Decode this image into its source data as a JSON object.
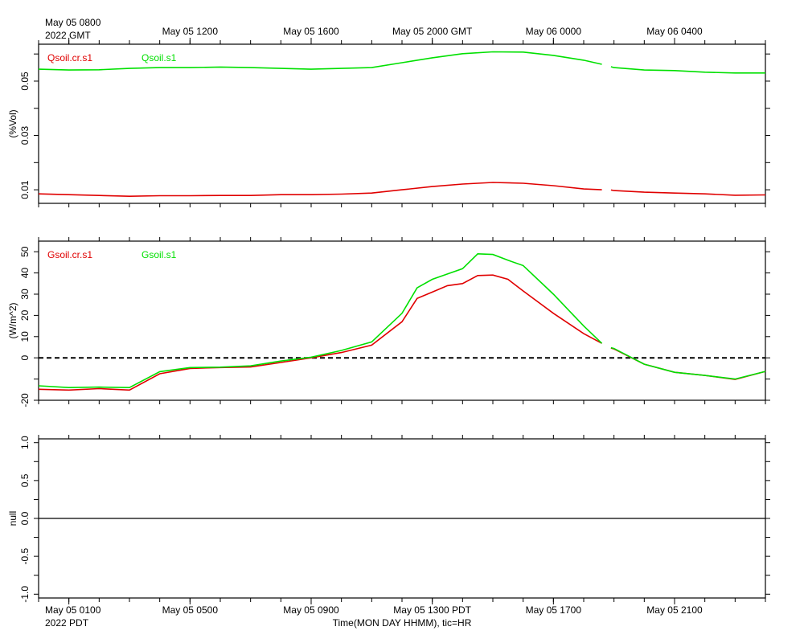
{
  "chart_data": [
    {
      "type": "line",
      "ylabel": "(%Vol)",
      "xlim": [
        0,
        24
      ],
      "ylim": [
        0.005,
        0.0636
      ],
      "yticks": [
        0.01,
        0.03,
        0.05
      ],
      "yticks_minor": [
        0.02,
        0.04,
        0.06
      ],
      "xticks_minor": [
        0,
        1,
        2,
        3,
        4,
        5,
        6,
        7,
        8,
        9,
        10,
        11,
        12,
        13,
        14,
        15,
        16,
        17,
        18,
        19,
        20,
        21,
        22,
        23,
        24
      ],
      "x2ticks": [
        {
          "value": 1,
          "label": "May 05 0800"
        },
        {
          "value": 5,
          "label": "May 05 1200"
        },
        {
          "value": 9,
          "label": "May 05 1600"
        },
        {
          "value": 13,
          "label": "May 05 2000 GMT"
        },
        {
          "value": 17,
          "label": "May 06 0000"
        },
        {
          "value": 21,
          "label": "May 06 0400"
        }
      ],
      "x2_year": "2022 GMT",
      "x": [
        0,
        1,
        2,
        3,
        4,
        5,
        6,
        7,
        8,
        9,
        10,
        11,
        12,
        13,
        14,
        15,
        16,
        17,
        18,
        18.6,
        18.75,
        18.9,
        19,
        20,
        21,
        22,
        23,
        24
      ],
      "series": [
        {
          "name": "Qsoil.cr.s1",
          "color": "#e00000",
          "values": [
            0.0085,
            0.0082,
            0.0079,
            0.0076,
            0.0078,
            0.0078,
            0.0079,
            0.0079,
            0.0082,
            0.0082,
            0.0084,
            0.0088,
            0.01,
            0.0112,
            0.0121,
            0.0127,
            0.0124,
            0.0115,
            0.0103,
            0.01,
            null,
            0.0099,
            0.0097,
            0.0091,
            0.0088,
            0.0085,
            0.008,
            0.0081
          ]
        },
        {
          "name": "Qsoil.s1",
          "color": "#00e000",
          "values": [
            0.0544,
            0.0541,
            0.0542,
            0.0547,
            0.055,
            0.055,
            0.0552,
            0.055,
            0.0547,
            0.0544,
            0.0547,
            0.055,
            0.0568,
            0.0586,
            0.0601,
            0.0608,
            0.0607,
            0.0595,
            0.0577,
            0.0562,
            null,
            0.0553,
            0.055,
            0.0541,
            0.0539,
            0.0533,
            0.053,
            0.053
          ]
        }
      ]
    },
    {
      "type": "line",
      "ylabel": "(W/m^2)",
      "xlim": [
        0,
        24
      ],
      "ylim": [
        -20,
        55
      ],
      "yticks": [
        -20,
        0,
        10,
        20,
        30,
        40,
        50
      ],
      "yticks_minor": [
        -10
      ],
      "xticks_minor": [
        0,
        1,
        2,
        3,
        4,
        5,
        6,
        7,
        8,
        9,
        10,
        11,
        12,
        13,
        14,
        15,
        16,
        17,
        18,
        19,
        20,
        21,
        22,
        23,
        24
      ],
      "zero_line": "dashed",
      "x": [
        0,
        1,
        2,
        3,
        4,
        5,
        6,
        7,
        8,
        9,
        10,
        11,
        12,
        12.5,
        13,
        13.5,
        14,
        14.5,
        15,
        15.5,
        16,
        17,
        18,
        18.6,
        18.75,
        18.9,
        19,
        20,
        21,
        22,
        23,
        24
      ],
      "series": [
        {
          "name": "Gsoil.cr.s1",
          "color": "#e00000",
          "values": [
            -14.8,
            -15.2,
            -14.5,
            -15.2,
            -7.5,
            -5,
            -4.6,
            -4.3,
            -2.2,
            0,
            2.5,
            6,
            17,
            28,
            31,
            34,
            35,
            38.8,
            39,
            37,
            31.5,
            21,
            11.4,
            6.8,
            null,
            4.6,
            4.2,
            -3,
            -6.8,
            -8.3,
            -10.2,
            -6.4
          ]
        },
        {
          "name": "Gsoil.s1",
          "color": "#00e000",
          "values": [
            -13.2,
            -14,
            -13.8,
            -14,
            -6.5,
            -4.6,
            -4.4,
            -3.8,
            -1.5,
            0.3,
            3.5,
            7.5,
            21,
            33,
            37,
            39.5,
            42,
            49,
            48.7,
            46,
            43.5,
            30,
            15,
            6.8,
            null,
            4.8,
            4.4,
            -3,
            -6.8,
            -8.3,
            -10,
            -6.4
          ]
        }
      ]
    },
    {
      "type": "line",
      "ylabel": "null",
      "xlim": [
        0,
        24
      ],
      "ylim": [
        -1.05,
        1.05
      ],
      "yticks": [
        {
          "value": -1,
          "label": "-1.0"
        },
        {
          "value": -0.5,
          "label": "-0.5"
        },
        {
          "value": 0,
          "label": "0.0"
        },
        {
          "value": 0.5,
          "label": "0.5"
        },
        {
          "value": 1,
          "label": "1.0"
        }
      ],
      "yticks_minor": [
        -0.75,
        -0.25,
        0.25,
        0.75
      ],
      "xticks_minor": [
        0,
        1,
        2,
        3,
        4,
        5,
        6,
        7,
        8,
        9,
        10,
        11,
        12,
        13,
        14,
        15,
        16,
        17,
        18,
        19,
        20,
        21,
        22,
        23,
        24
      ],
      "zero_line": "solid",
      "xticks": [
        {
          "value": 1,
          "label": "May 05 0100"
        },
        {
          "value": 5,
          "label": "May 05 0500"
        },
        {
          "value": 9,
          "label": "May 05 0900"
        },
        {
          "value": 13,
          "label": "May 05 1300 PDT"
        },
        {
          "value": 17,
          "label": "May 05 1700"
        },
        {
          "value": 21,
          "label": "May 05 2100"
        }
      ],
      "x_year": "2022 PDT",
      "xlabel": "Time(MON DAY HHMM), tic=HR",
      "x": [],
      "series": []
    }
  ]
}
